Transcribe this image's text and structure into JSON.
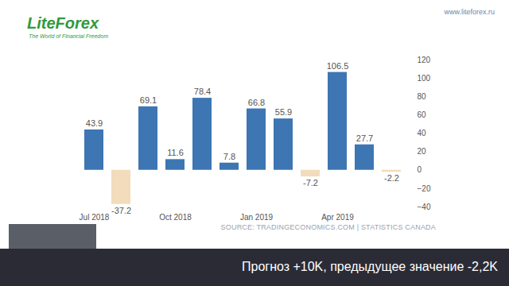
{
  "page": {
    "logo": "LiteForex",
    "logo_tagline": "The World of Financial Freedom",
    "url": "www.liteforex.ru",
    "caption": "Прогноз +10K, предыдущее значение -2,2K"
  },
  "chart_data": {
    "type": "bar",
    "categories": [
      "Jul 2018",
      null,
      null,
      "Oct 2018",
      null,
      null,
      "Jan 2019",
      null,
      null,
      "Apr 2019",
      null,
      null
    ],
    "values": [
      43.9,
      -37.2,
      69.1,
      11.6,
      78.4,
      7.8,
      66.8,
      55.9,
      -7.2,
      106.5,
      27.7,
      -2.2
    ],
    "colors": [
      "#3d76b3",
      "#f3dcbb",
      "#3d76b3",
      "#3d76b3",
      "#3d76b3",
      "#3d76b3",
      "#3d76b3",
      "#3d76b3",
      "#f3dcbb",
      "#3d76b3",
      "#3d76b3",
      "#f3dcbb"
    ],
    "ylim": [
      -40,
      120
    ],
    "yticks": [
      -40,
      -20,
      0,
      20,
      40,
      60,
      80,
      100,
      120
    ],
    "grid": false,
    "data_labels": true,
    "source": "SOURCE: TRADINGECONOMICS.COM | STATISTICS CANADA"
  }
}
